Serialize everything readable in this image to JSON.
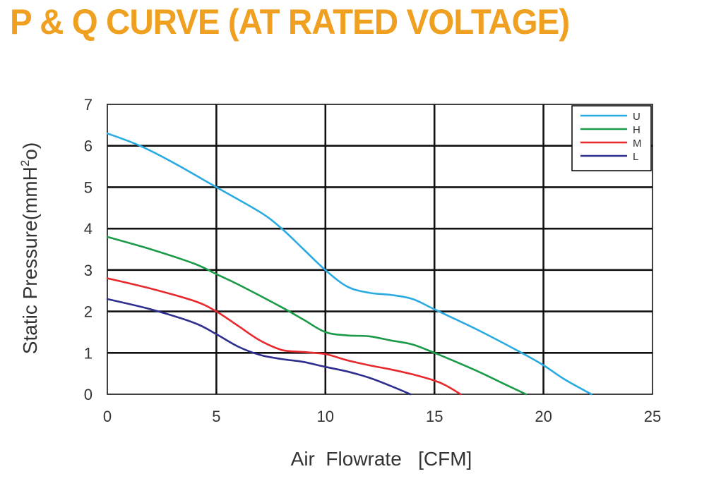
{
  "page": {
    "title": "P & Q CURVE (AT RATED VOLTAGE)",
    "title_color": "#f0a020"
  },
  "chart_data": {
    "type": "line",
    "xlabel": "Air  Flowrate   [CFM]",
    "ylabel_main": "Static Pressure(mmH",
    "ylabel_sup": "2",
    "ylabel_tail": "o)",
    "xlim": [
      0,
      25
    ],
    "ylim": [
      0,
      7
    ],
    "x_ticks": [
      0,
      5,
      10,
      15,
      20,
      25
    ],
    "y_ticks": [
      0,
      1,
      2,
      3,
      4,
      5,
      6,
      7
    ],
    "grid": true,
    "legend_position": "top-right",
    "series": [
      {
        "name": "U",
        "color": "#29abe2",
        "points": [
          [
            0,
            6.3
          ],
          [
            1.5,
            6.0
          ],
          [
            3,
            5.6
          ],
          [
            5,
            5.0
          ],
          [
            7,
            4.4
          ],
          [
            8,
            4.0
          ],
          [
            9,
            3.5
          ],
          [
            10,
            3.0
          ],
          [
            11,
            2.6
          ],
          [
            12,
            2.45
          ],
          [
            13,
            2.4
          ],
          [
            14,
            2.3
          ],
          [
            15,
            2.05
          ],
          [
            17,
            1.55
          ],
          [
            19,
            1.0
          ],
          [
            20,
            0.7
          ],
          [
            21,
            0.35
          ],
          [
            22.2,
            0.0
          ]
        ]
      },
      {
        "name": "H",
        "color": "#1a9a48",
        "points": [
          [
            0,
            3.8
          ],
          [
            2,
            3.5
          ],
          [
            4,
            3.15
          ],
          [
            5,
            2.9
          ],
          [
            6,
            2.65
          ],
          [
            8,
            2.1
          ],
          [
            9,
            1.8
          ],
          [
            10,
            1.5
          ],
          [
            11,
            1.42
          ],
          [
            12,
            1.4
          ],
          [
            13,
            1.3
          ],
          [
            14,
            1.2
          ],
          [
            15,
            1.0
          ],
          [
            16,
            0.78
          ],
          [
            17,
            0.55
          ],
          [
            18,
            0.3
          ],
          [
            19.2,
            0.0
          ]
        ]
      },
      {
        "name": "M",
        "color": "#e8282d",
        "points": [
          [
            0,
            2.8
          ],
          [
            2,
            2.55
          ],
          [
            4,
            2.25
          ],
          [
            5,
            2.0
          ],
          [
            6,
            1.65
          ],
          [
            7,
            1.3
          ],
          [
            8,
            1.07
          ],
          [
            9,
            1.02
          ],
          [
            10,
            0.97
          ],
          [
            11,
            0.82
          ],
          [
            12,
            0.7
          ],
          [
            13,
            0.6
          ],
          [
            14,
            0.48
          ],
          [
            15,
            0.33
          ],
          [
            15.5,
            0.22
          ],
          [
            16.2,
            0.0
          ]
        ]
      },
      {
        "name": "L",
        "color": "#2e2e8f",
        "points": [
          [
            0,
            2.3
          ],
          [
            2,
            2.05
          ],
          [
            4,
            1.72
          ],
          [
            5,
            1.45
          ],
          [
            6,
            1.15
          ],
          [
            7,
            0.95
          ],
          [
            8,
            0.85
          ],
          [
            9,
            0.78
          ],
          [
            10,
            0.66
          ],
          [
            11,
            0.55
          ],
          [
            12,
            0.4
          ],
          [
            13,
            0.2
          ],
          [
            13.9,
            0.0
          ]
        ]
      }
    ]
  }
}
